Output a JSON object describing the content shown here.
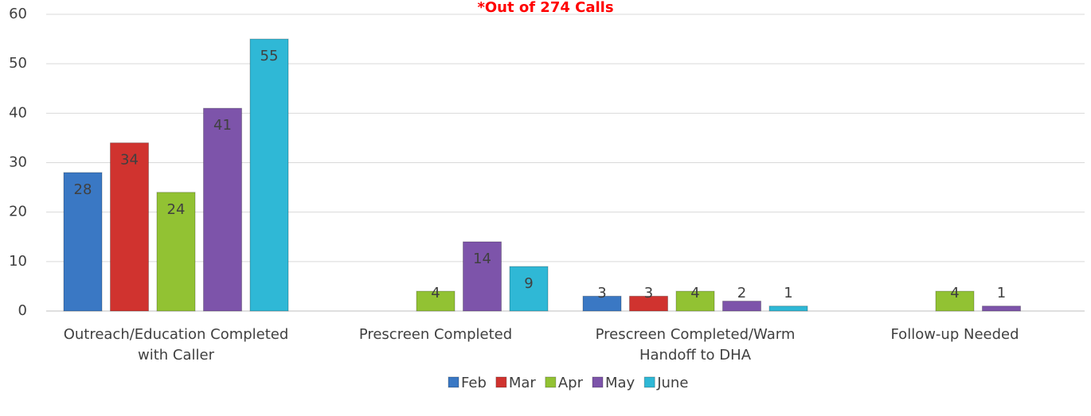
{
  "chart_data": {
    "type": "bar",
    "title": "*Out of 274 Calls",
    "categories": [
      "Outreach/Education Completed with Caller",
      "Prescreen Completed",
      "Prescreen Completed/Warm Handoff to DHA",
      "Follow-up Needed"
    ],
    "series": [
      {
        "name": "Feb",
        "color": "#3a78c4",
        "values": [
          28,
          null,
          3,
          null
        ]
      },
      {
        "name": "Mar",
        "color": "#d0332f",
        "values": [
          34,
          null,
          3,
          null
        ]
      },
      {
        "name": "Apr",
        "color": "#92c233",
        "values": [
          24,
          4,
          4,
          4
        ]
      },
      {
        "name": "May",
        "color": "#7d54aa",
        "values": [
          41,
          14,
          2,
          1
        ]
      },
      {
        "name": "June",
        "color": "#2fb8d6",
        "values": [
          55,
          9,
          1,
          null
        ]
      }
    ],
    "ylim": [
      0,
      60
    ],
    "yticks": [
      0,
      10,
      20,
      30,
      40,
      50,
      60
    ],
    "grid": true,
    "legend": "bottom"
  }
}
